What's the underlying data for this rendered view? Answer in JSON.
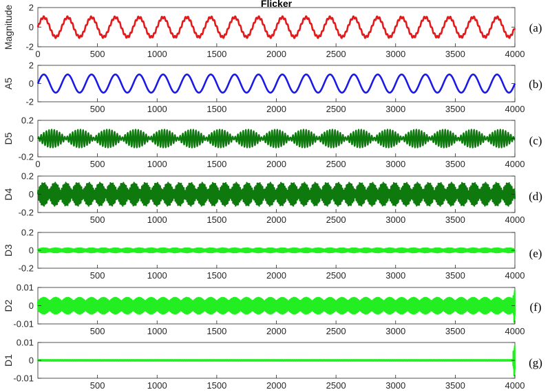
{
  "chart_data": [
    {
      "type": "line",
      "title": "Flicker",
      "ylabel": "Magnitude",
      "panel_label": "(a)",
      "xlim": [
        0,
        4000
      ],
      "ylim": [
        -2,
        2
      ],
      "yticks": [
        "-2",
        "0",
        "2"
      ],
      "xticks": [
        "0",
        "500",
        "1000",
        "1500",
        "2000",
        "2500",
        "3000",
        "3500",
        "4000"
      ],
      "color": "#e31a1c",
      "series": [
        {
          "kind": "sine_with_ripple",
          "amplitude": 1.0,
          "period": 200,
          "ripple": 0.12
        }
      ]
    },
    {
      "type": "line",
      "ylabel": "A5",
      "panel_label": "(b)",
      "xlim": [
        0,
        4000
      ],
      "ylim": [
        -2,
        2
      ],
      "yticks": [
        "-2",
        "0",
        "2"
      ],
      "xticks": [
        "500",
        "1000",
        "1500",
        "2000",
        "2500",
        "3000",
        "3500",
        "4000"
      ],
      "color": "#1a1ae6",
      "series": [
        {
          "kind": "sine",
          "amplitude": 1.0,
          "period": 200
        }
      ]
    },
    {
      "type": "line",
      "ylabel": "D5",
      "panel_label": "(c)",
      "xlim": [
        0,
        4000
      ],
      "ylim": [
        -0.2,
        0.2
      ],
      "yticks": [
        "-0.2",
        "0",
        "0.2"
      ],
      "xticks": [
        "0",
        "500",
        "1000",
        "1500",
        "2000",
        "2500",
        "3000",
        "3500",
        "4000"
      ],
      "color": "#0e7a0e",
      "series": [
        {
          "kind": "modulated_oscillation",
          "amplitude": 0.1,
          "period": 22,
          "envelope_period": 235,
          "min_amplitude": 0.01
        }
      ]
    },
    {
      "type": "line",
      "ylabel": "D4",
      "panel_label": "(d)",
      "xlim": [
        0,
        4000
      ],
      "ylim": [
        -0.2,
        0.2
      ],
      "yticks": [
        "-0.2",
        "0",
        "0.2"
      ],
      "xticks": [
        "500",
        "1000",
        "1500",
        "2000",
        "2500",
        "3000",
        "3500",
        "4000"
      ],
      "color": "#0e7a0e",
      "series": [
        {
          "kind": "modulated_oscillation",
          "amplitude": 0.13,
          "period": 11,
          "envelope_period": 95,
          "min_amplitude": 0.04
        }
      ]
    },
    {
      "type": "line",
      "ylabel": "D3",
      "panel_label": "(e)",
      "xlim": [
        0,
        4000
      ],
      "ylim": [
        -0.2,
        0.2
      ],
      "yticks": [
        "-0.2",
        "0",
        "0.2"
      ],
      "xticks": [
        "500",
        "1000",
        "1500",
        "2000",
        "2500",
        "3000",
        "3500",
        "4000"
      ],
      "color": "#22ee22",
      "series": [
        {
          "kind": "modulated_oscillation",
          "amplitude": 0.025,
          "period": 5,
          "envelope_period": 100,
          "min_amplitude": 0.012
        }
      ]
    },
    {
      "type": "line",
      "ylabel": "D2",
      "panel_label": "(f)",
      "xlim": [
        0,
        4000
      ],
      "ylim": [
        -0.01,
        0.01
      ],
      "yticks": [
        "-0.01",
        "0",
        "0.01"
      ],
      "xticks": [
        "500",
        "1000",
        "1500",
        "2000",
        "2500",
        "3000",
        "3500",
        "4000"
      ],
      "color": "#22ee22",
      "series": [
        {
          "kind": "modulated_oscillation",
          "amplitude": 0.0045,
          "period": 3,
          "envelope_period": 100,
          "min_amplitude": 0.0025,
          "end_spike": 0.009
        }
      ]
    },
    {
      "type": "line",
      "ylabel": "D1",
      "panel_label": "(g)",
      "xlim": [
        0,
        4000
      ],
      "ylim": [
        -0.01,
        0.01
      ],
      "yticks": [
        "-0.01",
        "0",
        "0.01"
      ],
      "xticks": [
        "500",
        "1000",
        "1500",
        "2000",
        "2500",
        "3000",
        "3500",
        "4000"
      ],
      "color": "#22ee22",
      "series": [
        {
          "kind": "modulated_oscillation",
          "amplitude": 0.0003,
          "period": 2,
          "envelope_period": 100,
          "min_amplitude": 0.0003,
          "end_spike": 0.0085
        }
      ]
    }
  ]
}
